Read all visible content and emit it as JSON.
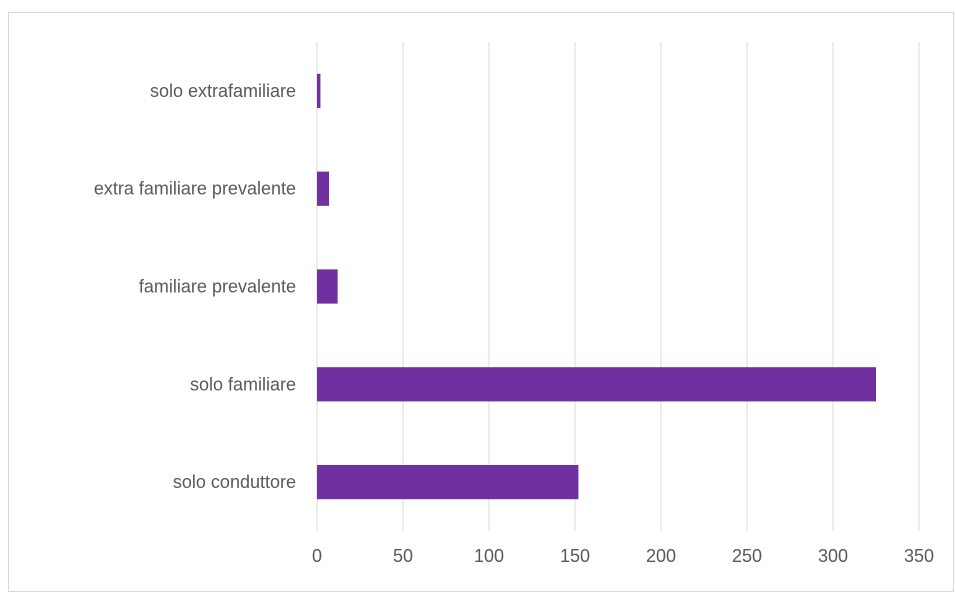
{
  "chart_data": {
    "type": "bar",
    "orientation": "horizontal",
    "categories": [
      "solo conduttore",
      "solo familiare",
      "familiare prevalente",
      "extra familiare prevalente",
      "solo extrafamiliare"
    ],
    "values": [
      152,
      325,
      12,
      7,
      2
    ],
    "title": "",
    "xlabel": "",
    "ylabel": "",
    "xlim": [
      0,
      350
    ],
    "xticks": [
      0,
      50,
      100,
      150,
      200,
      250,
      300,
      350
    ],
    "grid": "vertical",
    "legend": "none",
    "bar_color": "#7030a0",
    "grid_color": "#d9d9d9"
  }
}
